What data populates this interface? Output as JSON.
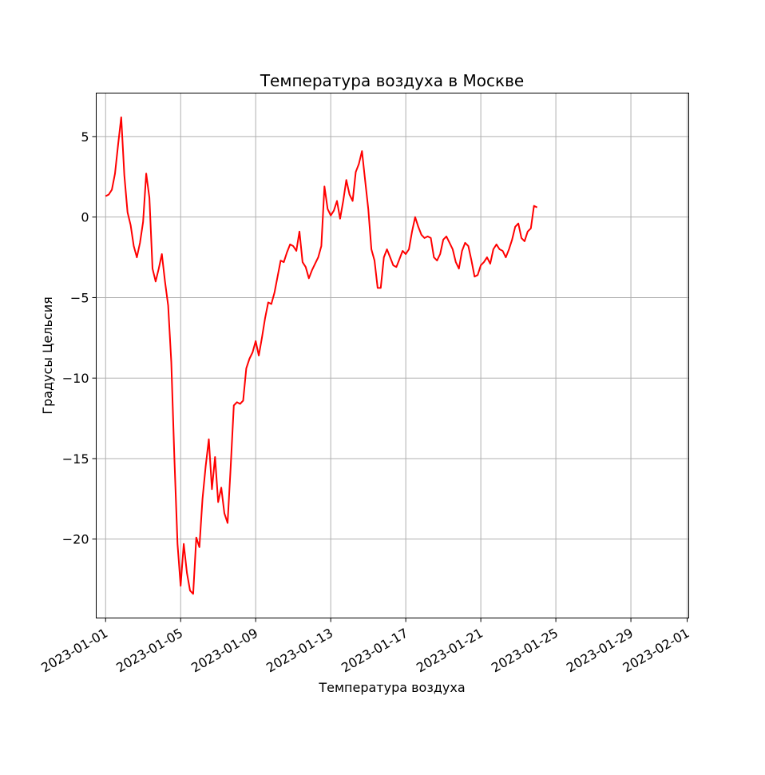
{
  "chart_data": {
    "type": "line",
    "title": "Температура воздуха в Москве",
    "xlabel": "Температура воздуха",
    "ylabel": "Градусы Цельсия",
    "x_ticks": [
      "2023-01-01",
      "2023-01-05",
      "2023-01-09",
      "2023-01-13",
      "2023-01-17",
      "2023-01-21",
      "2023-01-25",
      "2023-01-29",
      "2023-02-01"
    ],
    "y_ticks": [
      5,
      0,
      -5,
      -10,
      -15,
      -20
    ],
    "y_tick_labels": [
      "5",
      "0",
      "−5",
      "−10",
      "−15",
      "−20"
    ],
    "xlim": [
      "2022-12-31T12:00",
      "2023-02-01T02:00"
    ],
    "ylim": [
      -24.9,
      7.7
    ],
    "grid": true,
    "series": [
      {
        "color": "#ff0000",
        "points": [
          [
            "2023-01-01T00:00",
            1.3
          ],
          [
            "2023-01-01T04:00",
            1.4
          ],
          [
            "2023-01-01T08:00",
            1.7
          ],
          [
            "2023-01-01T12:00",
            2.7
          ],
          [
            "2023-01-01T16:00",
            4.5
          ],
          [
            "2023-01-01T20:00",
            6.2
          ],
          [
            "2023-01-02T00:00",
            2.6
          ],
          [
            "2023-01-02T04:00",
            0.3
          ],
          [
            "2023-01-02T08:00",
            -0.5
          ],
          [
            "2023-01-02T12:00",
            -1.8
          ],
          [
            "2023-01-02T16:00",
            -2.5
          ],
          [
            "2023-01-02T20:00",
            -1.6
          ],
          [
            "2023-01-03T00:00",
            -0.3
          ],
          [
            "2023-01-03T04:00",
            2.7
          ],
          [
            "2023-01-03T08:00",
            1.2
          ],
          [
            "2023-01-03T12:00",
            -3.2
          ],
          [
            "2023-01-03T16:00",
            -4.0
          ],
          [
            "2023-01-03T20:00",
            -3.2
          ],
          [
            "2023-01-04T00:00",
            -2.3
          ],
          [
            "2023-01-04T04:00",
            -4.0
          ],
          [
            "2023-01-04T08:00",
            -5.5
          ],
          [
            "2023-01-04T12:00",
            -9.0
          ],
          [
            "2023-01-04T16:00",
            -15.0
          ],
          [
            "2023-01-04T20:00",
            -20.3
          ],
          [
            "2023-01-05T00:00",
            -22.9
          ],
          [
            "2023-01-05T04:00",
            -20.3
          ],
          [
            "2023-01-05T08:00",
            -22.1
          ],
          [
            "2023-01-05T12:00",
            -23.2
          ],
          [
            "2023-01-05T16:00",
            -23.4
          ],
          [
            "2023-01-05T20:00",
            -19.9
          ],
          [
            "2023-01-06T00:00",
            -20.5
          ],
          [
            "2023-01-06T04:00",
            -17.5
          ],
          [
            "2023-01-06T08:00",
            -15.5
          ],
          [
            "2023-01-06T12:00",
            -13.8
          ],
          [
            "2023-01-06T16:00",
            -16.9
          ],
          [
            "2023-01-06T20:00",
            -14.9
          ],
          [
            "2023-01-07T00:00",
            -17.7
          ],
          [
            "2023-01-07T04:00",
            -16.8
          ],
          [
            "2023-01-07T08:00",
            -18.4
          ],
          [
            "2023-01-07T12:00",
            -19.0
          ],
          [
            "2023-01-07T16:00",
            -15.5
          ],
          [
            "2023-01-07T20:00",
            -11.7
          ],
          [
            "2023-01-08T00:00",
            -11.5
          ],
          [
            "2023-01-08T04:00",
            -11.6
          ],
          [
            "2023-01-08T08:00",
            -11.4
          ],
          [
            "2023-01-08T12:00",
            -9.4
          ],
          [
            "2023-01-08T16:00",
            -8.8
          ],
          [
            "2023-01-08T20:00",
            -8.4
          ],
          [
            "2023-01-09T00:00",
            -7.7
          ],
          [
            "2023-01-09T04:00",
            -8.6
          ],
          [
            "2023-01-09T08:00",
            -7.5
          ],
          [
            "2023-01-09T12:00",
            -6.3
          ],
          [
            "2023-01-09T16:00",
            -5.3
          ],
          [
            "2023-01-09T20:00",
            -5.4
          ],
          [
            "2023-01-10T00:00",
            -4.7
          ],
          [
            "2023-01-10T04:00",
            -3.7
          ],
          [
            "2023-01-10T08:00",
            -2.7
          ],
          [
            "2023-01-10T12:00",
            -2.8
          ],
          [
            "2023-01-10T16:00",
            -2.2
          ],
          [
            "2023-01-10T20:00",
            -1.7
          ],
          [
            "2023-01-11T00:00",
            -1.8
          ],
          [
            "2023-01-11T04:00",
            -2.1
          ],
          [
            "2023-01-11T08:00",
            -0.9
          ],
          [
            "2023-01-11T12:00",
            -2.8
          ],
          [
            "2023-01-11T16:00",
            -3.1
          ],
          [
            "2023-01-11T20:00",
            -3.8
          ],
          [
            "2023-01-12T00:00",
            -3.3
          ],
          [
            "2023-01-12T04:00",
            -2.9
          ],
          [
            "2023-01-12T08:00",
            -2.5
          ],
          [
            "2023-01-12T12:00",
            -1.8
          ],
          [
            "2023-01-12T16:00",
            1.9
          ],
          [
            "2023-01-12T20:00",
            0.5
          ],
          [
            "2023-01-13T00:00",
            0.1
          ],
          [
            "2023-01-13T04:00",
            0.4
          ],
          [
            "2023-01-13T08:00",
            1.0
          ],
          [
            "2023-01-13T12:00",
            -0.1
          ],
          [
            "2023-01-13T16:00",
            1.0
          ],
          [
            "2023-01-13T20:00",
            2.3
          ],
          [
            "2023-01-14T00:00",
            1.4
          ],
          [
            "2023-01-14T04:00",
            1.0
          ],
          [
            "2023-01-14T08:00",
            2.8
          ],
          [
            "2023-01-14T12:00",
            3.3
          ],
          [
            "2023-01-14T16:00",
            4.1
          ],
          [
            "2023-01-14T20:00",
            2.3
          ],
          [
            "2023-01-15T00:00",
            0.5
          ],
          [
            "2023-01-15T04:00",
            -2.0
          ],
          [
            "2023-01-15T08:00",
            -2.7
          ],
          [
            "2023-01-15T12:00",
            -4.4
          ],
          [
            "2023-01-15T16:00",
            -4.4
          ],
          [
            "2023-01-15T20:00",
            -2.5
          ],
          [
            "2023-01-16T00:00",
            -2.0
          ],
          [
            "2023-01-16T04:00",
            -2.5
          ],
          [
            "2023-01-16T08:00",
            -3.0
          ],
          [
            "2023-01-16T12:00",
            -3.1
          ],
          [
            "2023-01-16T16:00",
            -2.6
          ],
          [
            "2023-01-16T20:00",
            -2.1
          ],
          [
            "2023-01-17T00:00",
            -2.3
          ],
          [
            "2023-01-17T04:00",
            -2.0
          ],
          [
            "2023-01-17T08:00",
            -0.9
          ],
          [
            "2023-01-17T12:00",
            -0.0
          ],
          [
            "2023-01-17T16:00",
            -0.6
          ],
          [
            "2023-01-17T20:00",
            -1.1
          ],
          [
            "2023-01-18T00:00",
            -1.3
          ],
          [
            "2023-01-18T04:00",
            -1.2
          ],
          [
            "2023-01-18T08:00",
            -1.3
          ],
          [
            "2023-01-18T12:00",
            -2.5
          ],
          [
            "2023-01-18T16:00",
            -2.7
          ],
          [
            "2023-01-18T20:00",
            -2.3
          ],
          [
            "2023-01-19T00:00",
            -1.4
          ],
          [
            "2023-01-19T04:00",
            -1.2
          ],
          [
            "2023-01-19T08:00",
            -1.6
          ],
          [
            "2023-01-19T12:00",
            -2.0
          ],
          [
            "2023-01-19T16:00",
            -2.8
          ],
          [
            "2023-01-19T20:00",
            -3.2
          ],
          [
            "2023-01-20T00:00",
            -2.1
          ],
          [
            "2023-01-20T04:00",
            -1.6
          ],
          [
            "2023-01-20T08:00",
            -1.8
          ],
          [
            "2023-01-20T12:00",
            -2.7
          ],
          [
            "2023-01-20T16:00",
            -3.7
          ],
          [
            "2023-01-20T20:00",
            -3.6
          ],
          [
            "2023-01-21T00:00",
            -3.0
          ],
          [
            "2023-01-21T04:00",
            -2.8
          ],
          [
            "2023-01-21T08:00",
            -2.5
          ],
          [
            "2023-01-21T12:00",
            -2.9
          ],
          [
            "2023-01-21T16:00",
            -2.0
          ],
          [
            "2023-01-21T20:00",
            -1.7
          ],
          [
            "2023-01-22T00:00",
            -2.0
          ],
          [
            "2023-01-22T04:00",
            -2.1
          ],
          [
            "2023-01-22T08:00",
            -2.5
          ],
          [
            "2023-01-22T12:00",
            -2.0
          ],
          [
            "2023-01-22T16:00",
            -1.4
          ],
          [
            "2023-01-22T20:00",
            -0.6
          ],
          [
            "2023-01-23T00:00",
            -0.4
          ],
          [
            "2023-01-23T04:00",
            -1.3
          ],
          [
            "2023-01-23T08:00",
            -1.5
          ],
          [
            "2023-01-23T12:00",
            -0.9
          ],
          [
            "2023-01-23T16:00",
            -0.7
          ],
          [
            "2023-01-23T20:00",
            0.7
          ],
          [
            "2023-01-24T00:00",
            0.6
          ]
        ]
      }
    ]
  }
}
